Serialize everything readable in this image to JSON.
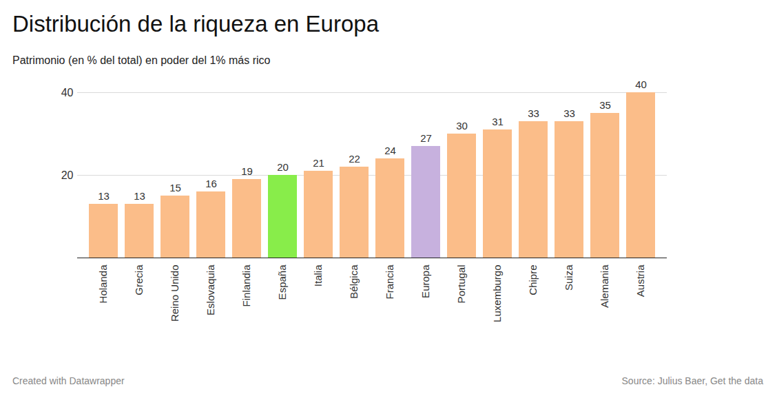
{
  "chart_data": {
    "type": "bar",
    "title": "Distribución de la riqueza en Europa",
    "subtitle": "Patrimonio (en % del total) en poder del 1% más rico",
    "categories": [
      "Holanda",
      "Grecia",
      "Reino Unido",
      "Eslovaquia",
      "Finlandia",
      "España",
      "Italia",
      "Bélgica",
      "Francia",
      "Europa",
      "Portugal",
      "Luxemburgo",
      "Chipre",
      "Suiza",
      "Alemania",
      "Austria"
    ],
    "values": [
      13,
      13,
      15,
      16,
      19,
      20,
      21,
      22,
      24,
      27,
      30,
      31,
      33,
      33,
      35,
      40
    ],
    "colors": [
      "#fbbd89",
      "#fbbd89",
      "#fbbd89",
      "#fbbd89",
      "#fbbd89",
      "#88ed4a",
      "#fbbd89",
      "#fbbd89",
      "#fbbd89",
      "#c7b1de",
      "#fbbd89",
      "#fbbd89",
      "#fbbd89",
      "#fbbd89",
      "#fbbd89",
      "#fbbd89"
    ],
    "ylim": [
      0,
      40
    ],
    "yticks": [
      20,
      40
    ],
    "grid": true,
    "data_labels": true,
    "credit": "Created with Datawrapper",
    "source": "Source: Julius Baer, Get the data"
  }
}
